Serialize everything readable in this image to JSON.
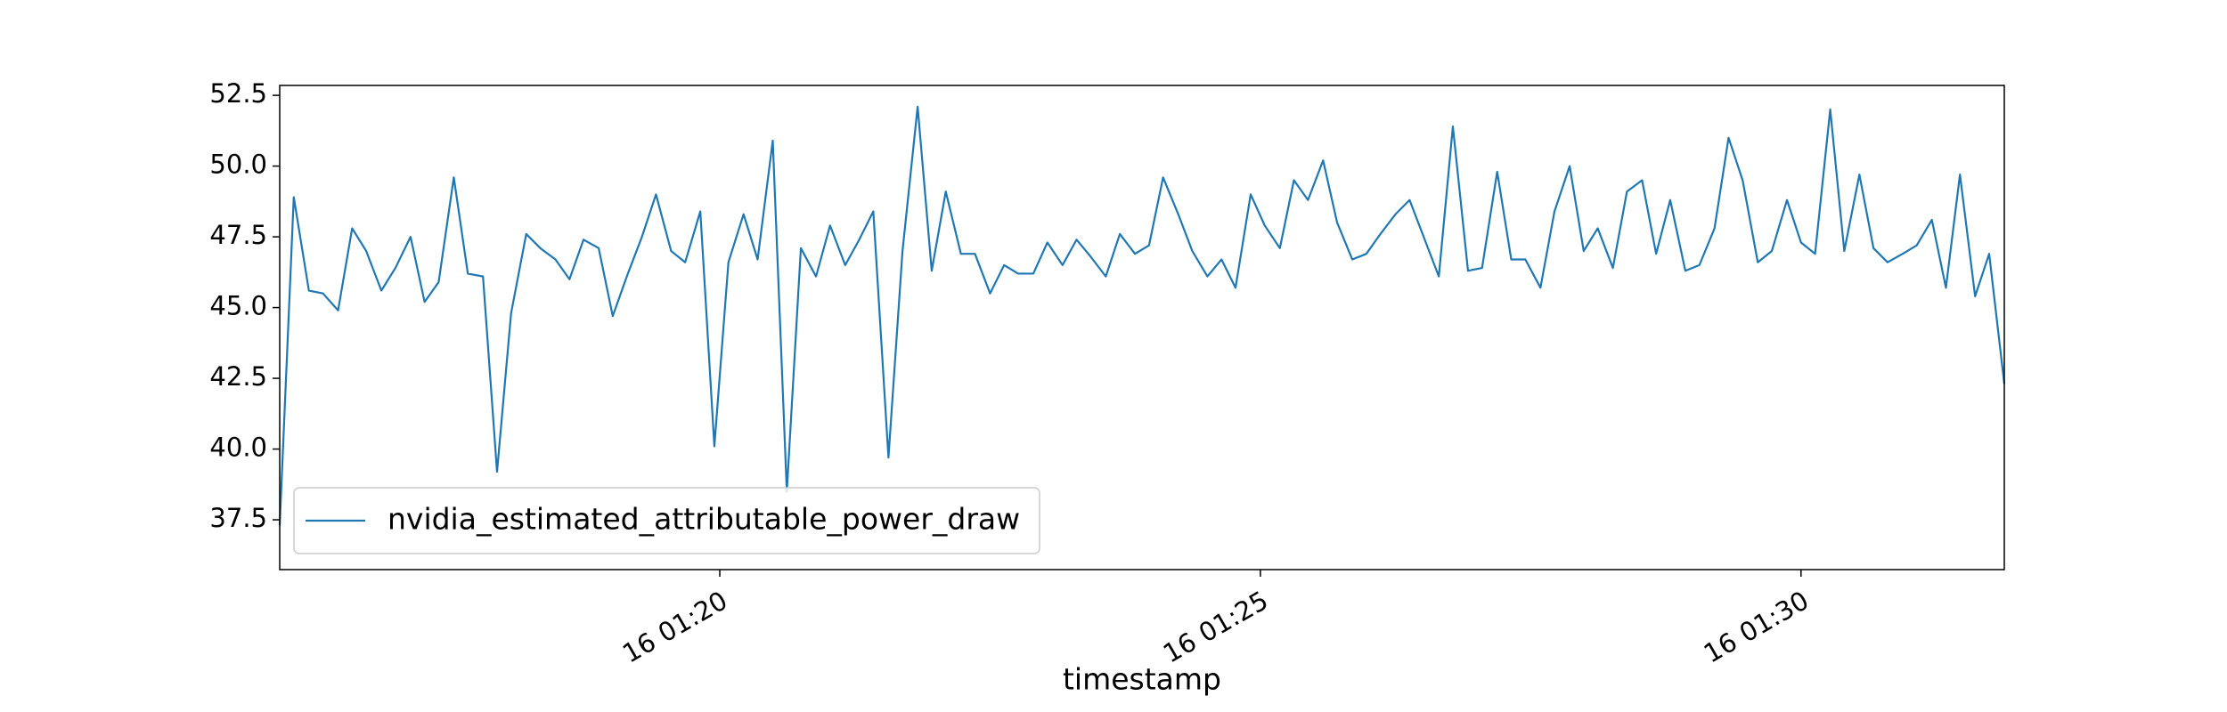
{
  "chart_data": {
    "type": "line",
    "xlabel": "timestamp",
    "x": [
      75.93,
      76.06,
      76.2,
      76.33,
      76.47,
      76.6,
      76.73,
      76.87,
      77.0,
      77.14,
      77.27,
      77.4,
      77.54,
      77.67,
      77.81,
      77.94,
      78.07,
      78.21,
      78.34,
      78.48,
      78.61,
      78.74,
      78.88,
      79.01,
      79.15,
      79.28,
      79.41,
      79.55,
      79.68,
      79.82,
      79.95,
      80.08,
      80.22,
      80.35,
      80.49,
      80.62,
      80.75,
      80.89,
      81.02,
      81.16,
      81.29,
      81.42,
      81.56,
      81.69,
      81.83,
      81.96,
      82.09,
      82.23,
      82.36,
      82.5,
      82.63,
      82.76,
      82.9,
      83.03,
      83.17,
      83.3,
      83.43,
      83.57,
      83.7,
      83.84,
      83.97,
      84.1,
      84.24,
      84.37,
      84.51,
      84.64,
      84.77,
      84.91,
      85.04,
      85.18,
      85.31,
      85.44,
      85.58,
      85.71,
      85.85,
      85.98,
      86.11,
      86.25,
      86.38,
      86.52,
      86.65,
      86.78,
      86.92,
      87.05,
      87.19,
      87.32,
      87.45,
      87.59,
      87.72,
      87.86,
      87.99,
      88.12,
      88.26,
      88.39,
      88.53,
      88.66,
      88.79,
      88.93,
      89.06,
      89.2,
      89.33,
      89.46,
      89.6,
      89.73,
      89.87,
      90.0,
      90.13,
      90.27,
      90.4,
      90.54,
      90.67,
      90.8,
      90.94,
      91.07,
      91.21,
      91.34,
      91.47,
      91.61,
      91.74,
      91.88
    ],
    "series": [
      {
        "name": "nvidia_estimated_attributable_power_draw",
        "color": "#1f77b4",
        "values": [
          37.3,
          48.9,
          45.6,
          45.5,
          44.9,
          47.8,
          47.0,
          45.6,
          46.4,
          47.5,
          45.2,
          45.9,
          49.6,
          46.2,
          46.1,
          39.2,
          44.8,
          47.6,
          47.1,
          46.7,
          46.0,
          47.4,
          47.1,
          44.7,
          46.2,
          47.5,
          49.0,
          47.0,
          46.6,
          48.4,
          40.1,
          46.6,
          48.3,
          46.7,
          50.9,
          38.5,
          47.1,
          46.1,
          47.9,
          46.5,
          47.4,
          48.4,
          39.7,
          47.0,
          52.1,
          46.3,
          49.1,
          46.9,
          46.9,
          45.5,
          46.5,
          46.2,
          46.2,
          47.3,
          46.5,
          47.4,
          46.8,
          46.1,
          47.6,
          46.9,
          47.2,
          49.6,
          48.3,
          47.0,
          46.1,
          46.7,
          45.7,
          49.0,
          47.9,
          47.1,
          49.5,
          48.8,
          50.2,
          48.0,
          46.7,
          46.9,
          47.6,
          48.3,
          48.8,
          47.4,
          46.1,
          51.4,
          46.3,
          46.4,
          49.8,
          46.7,
          46.7,
          45.7,
          48.4,
          50.0,
          47.0,
          47.8,
          46.4,
          49.1,
          49.5,
          46.9,
          48.8,
          46.3,
          46.5,
          47.8,
          51.0,
          49.5,
          46.6,
          47.0,
          48.8,
          47.3,
          46.9,
          52.0,
          47.0,
          49.7,
          47.1,
          46.6,
          46.9,
          47.2,
          48.1,
          45.7,
          49.7,
          45.4,
          46.9,
          42.3
        ]
      }
    ],
    "xlim": [
      75.93,
      91.88
    ],
    "xticks": [
      {
        "value": 80,
        "label": "16 01:20"
      },
      {
        "value": 85,
        "label": "16 01:25"
      },
      {
        "value": 90,
        "label": "16 01:30"
      }
    ],
    "ylim": [
      35.74,
      52.85
    ],
    "yticks": [
      37.5,
      {
        "value": 40,
        "label": "40.0"
      },
      42.5,
      {
        "value": 45,
        "label": "45.0"
      },
      47.5,
      {
        "value": 50,
        "label": "50.0"
      },
      52.5
    ],
    "grid": false,
    "legend": "lower left"
  }
}
